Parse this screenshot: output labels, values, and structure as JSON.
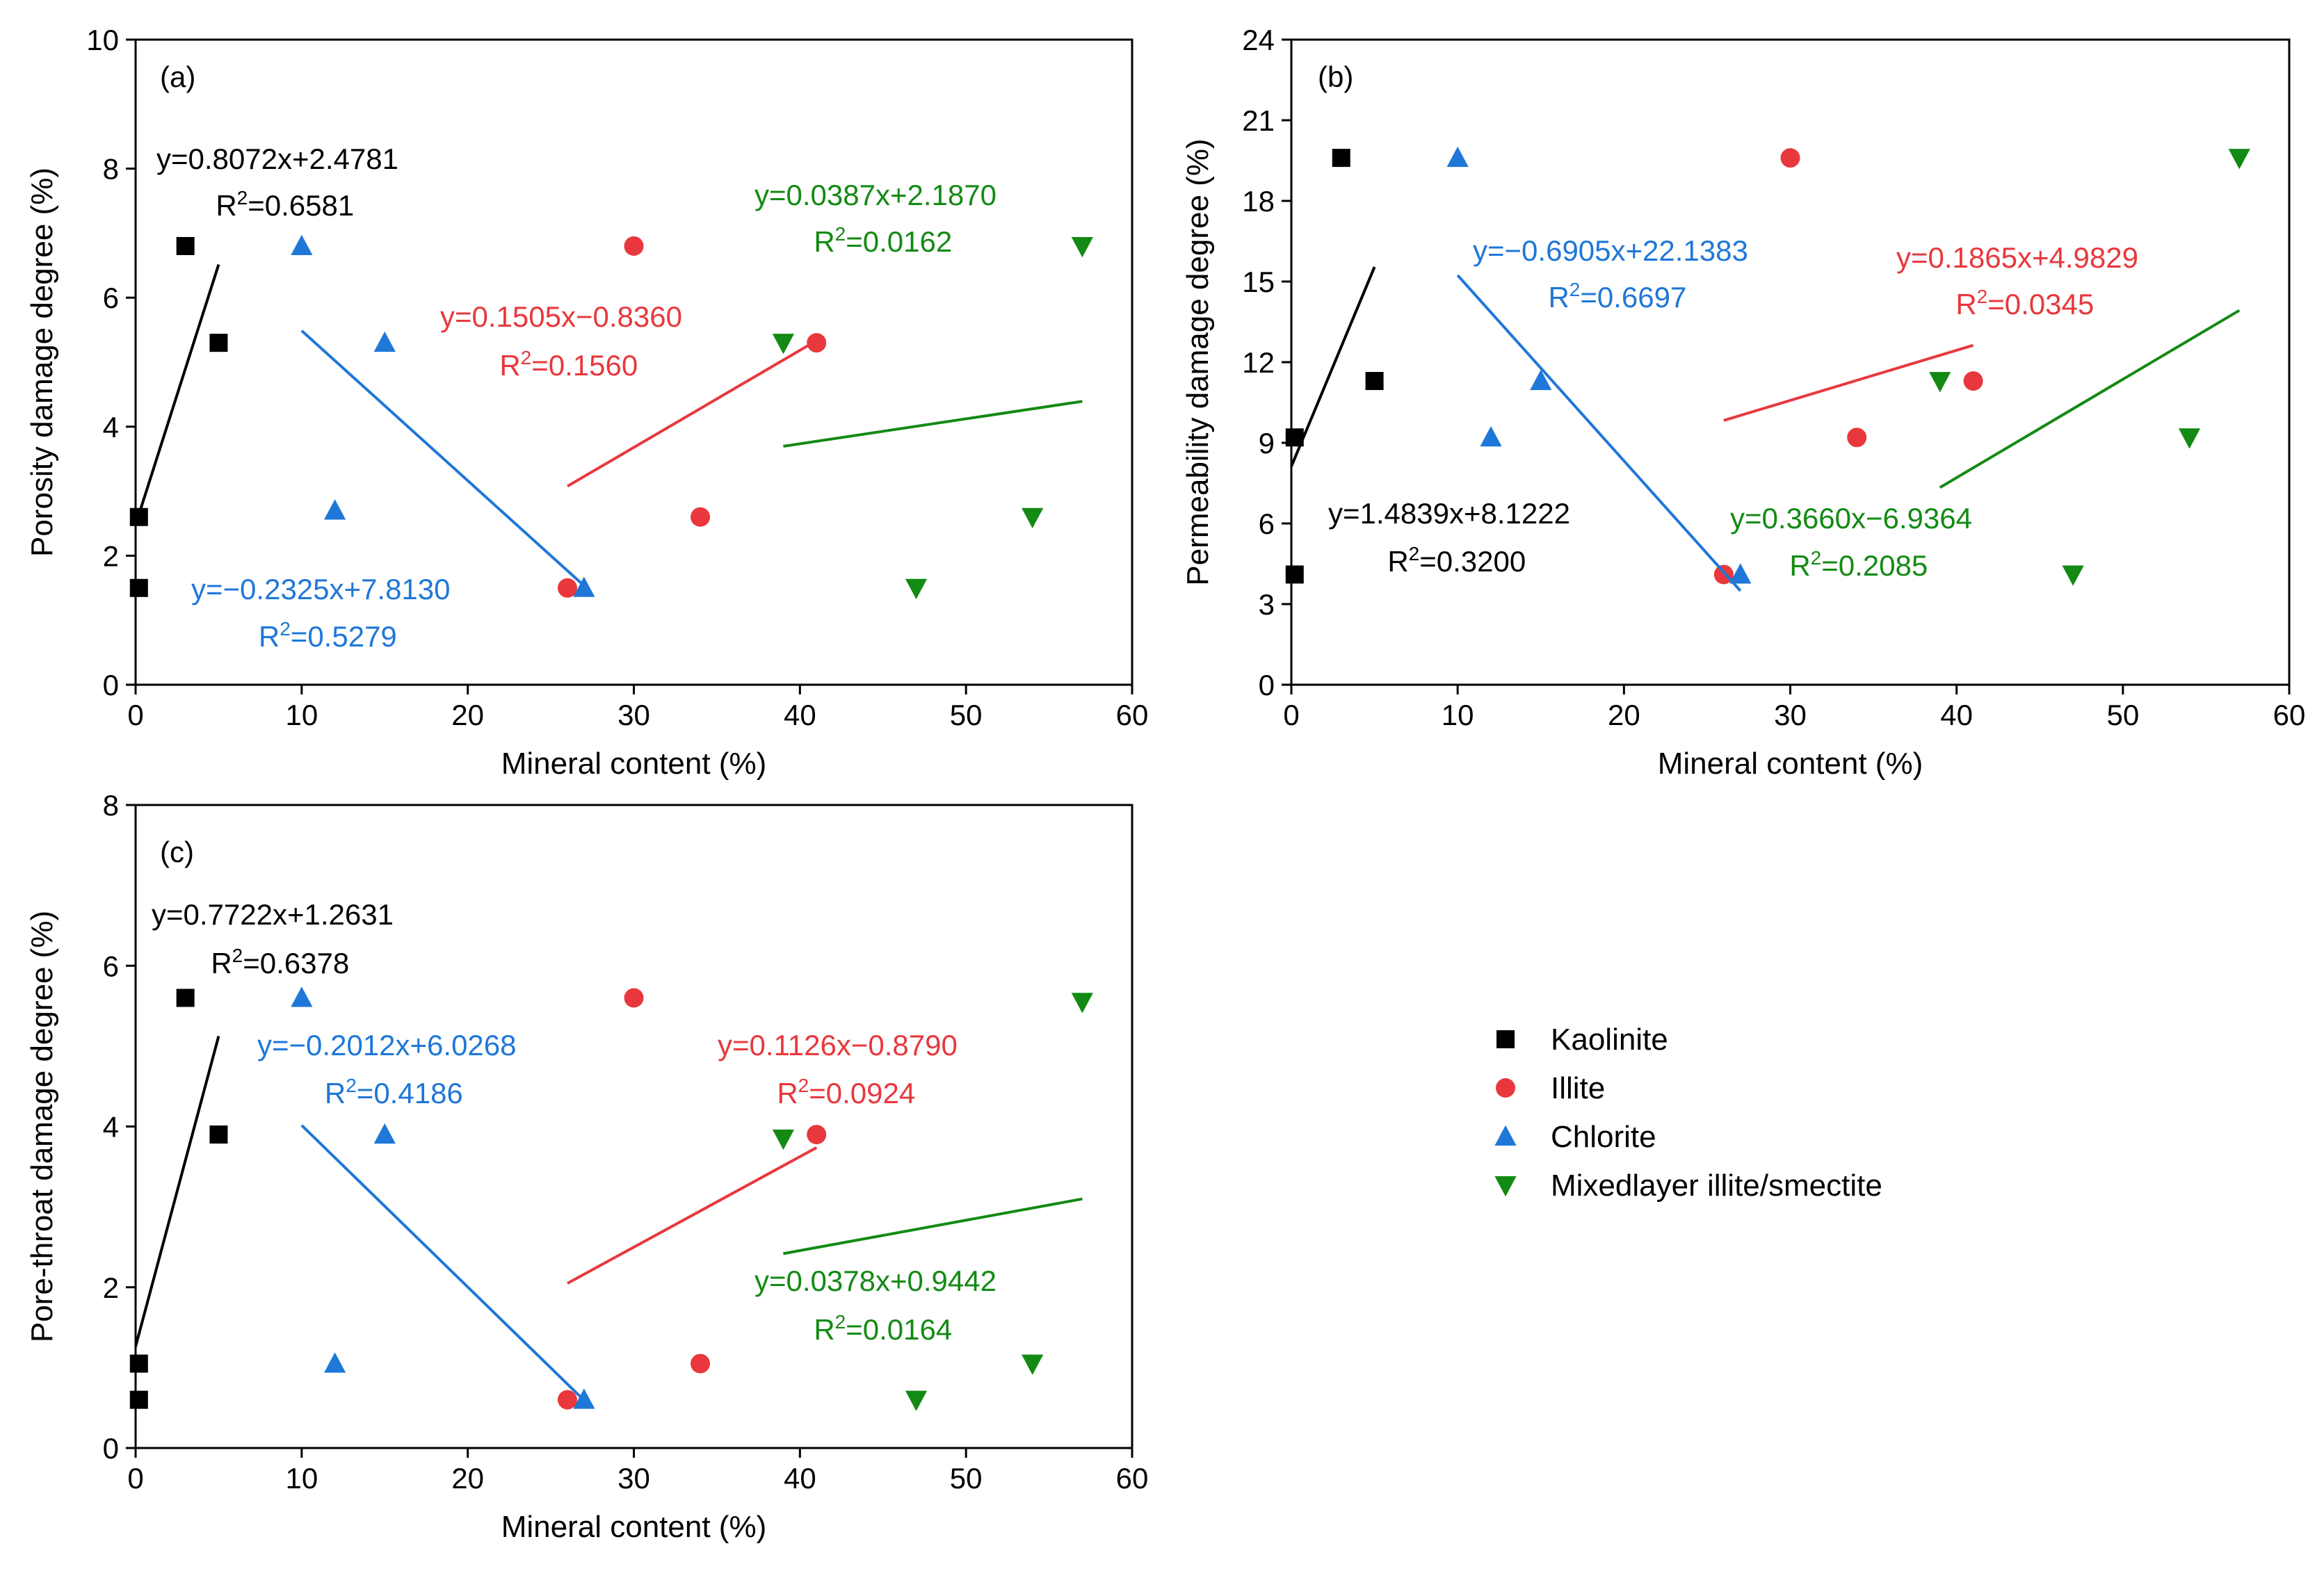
{
  "chart_data": [
    {
      "type": "scatter",
      "panel_label": "(a)",
      "xlabel": "Mineral content (%)",
      "ylabel": "Porosity damage degree (%)",
      "xlim": [
        0,
        60
      ],
      "ylim": [
        0,
        10
      ],
      "x_ticks": [
        0,
        10,
        20,
        30,
        40,
        50,
        60
      ],
      "y_ticks": [
        0,
        2,
        4,
        6,
        8,
        10
      ],
      "series": [
        {
          "name": "Kaolinite",
          "marker": "square",
          "color": "#000000",
          "points": [
            [
              0.2,
              1.5
            ],
            [
              0.2,
              2.6
            ],
            [
              3,
              6.8
            ],
            [
              5,
              5.3
            ]
          ],
          "fit": {
            "slope": 0.8072,
            "intercept": 2.4781,
            "x_range": [
              0,
              5
            ]
          },
          "equation": "y=0.8072x+2.4781",
          "r2": "=0.6581"
        },
        {
          "name": "Illite",
          "marker": "circle",
          "color": "#e8383d",
          "points": [
            [
              26,
              1.5
            ],
            [
              30,
              6.8
            ],
            [
              34,
              2.6
            ],
            [
              41,
              5.3
            ]
          ],
          "fit": {
            "slope": 0.1505,
            "intercept": -0.836,
            "x_range": [
              26,
              41
            ]
          },
          "equation": "y=0.1505x−0.8360",
          "r2": "=0.1560"
        },
        {
          "name": "Chlorite",
          "marker": "triangle-up",
          "color": "#1f77d8",
          "points": [
            [
              10,
              6.8
            ],
            [
              12,
              2.7
            ],
            [
              15,
              5.3
            ],
            [
              27,
              1.5
            ]
          ],
          "fit": {
            "slope": -0.2325,
            "intercept": 7.813,
            "x_range": [
              10,
              27
            ]
          },
          "equation": "y=−0.2325x+7.8130",
          "r2": "=0.5279"
        },
        {
          "name": "Mixedlayer illite/smectite",
          "marker": "triangle-down",
          "color": "#138a13",
          "points": [
            [
              39,
              5.3
            ],
            [
              47,
              1.5
            ],
            [
              54,
              2.6
            ],
            [
              57,
              6.8
            ]
          ],
          "fit": {
            "slope": 0.0387,
            "intercept": 2.187,
            "x_range": [
              39,
              57
            ]
          },
          "equation": "y=0.0387x+2.1870",
          "r2": "=0.0162"
        }
      ]
    },
    {
      "type": "scatter",
      "panel_label": "(b)",
      "xlabel": "Mineral content (%)",
      "ylabel": "Permeability damage degree (%)",
      "xlim": [
        0,
        60
      ],
      "ylim": [
        0,
        24
      ],
      "x_ticks": [
        0,
        10,
        20,
        30,
        40,
        50,
        60
      ],
      "y_ticks": [
        0,
        3,
        6,
        9,
        12,
        15,
        18,
        21,
        24
      ],
      "series": [
        {
          "name": "Kaolinite",
          "marker": "square",
          "color": "#000000",
          "points": [
            [
              0.2,
              4.1
            ],
            [
              0.2,
              9.2
            ],
            [
              3,
              19.6
            ],
            [
              5,
              11.3
            ]
          ],
          "fit": {
            "slope": 1.4839,
            "intercept": 8.1222,
            "x_range": [
              0,
              5
            ]
          },
          "equation": "y=1.4839x+8.1222",
          "r2": "=0.3200"
        },
        {
          "name": "Illite",
          "marker": "circle",
          "color": "#e8383d",
          "points": [
            [
              26,
              4.1
            ],
            [
              30,
              19.6
            ],
            [
              34,
              9.2
            ],
            [
              41,
              11.3
            ]
          ],
          "fit": {
            "slope": 0.1865,
            "intercept": 4.9829,
            "x_range": [
              26,
              41
            ]
          },
          "equation": "y=0.1865x+4.9829",
          "r2": "=0.0345"
        },
        {
          "name": "Chlorite",
          "marker": "triangle-up",
          "color": "#1f77d8",
          "points": [
            [
              10,
              19.6
            ],
            [
              12,
              9.2
            ],
            [
              15,
              11.3
            ],
            [
              27,
              4.1
            ]
          ],
          "fit": {
            "slope": -0.6905,
            "intercept": 22.1383,
            "x_range": [
              10,
              27
            ]
          },
          "equation": "y=−0.6905x+22.1383",
          "r2": "=0.6697"
        },
        {
          "name": "Mixedlayer illite/smectite",
          "marker": "triangle-down",
          "color": "#138a13",
          "points": [
            [
              39,
              11.3
            ],
            [
              47,
              4.1
            ],
            [
              54,
              9.2
            ],
            [
              57,
              19.6
            ]
          ],
          "fit": {
            "slope": 0.366,
            "intercept": -6.9364,
            "x_range": [
              39,
              57
            ]
          },
          "equation": "y=0.3660x−6.9364",
          "r2": "=0.2085"
        }
      ]
    },
    {
      "type": "scatter",
      "panel_label": "(c)",
      "xlabel": "Mineral content (%)",
      "ylabel": "Pore-throat damage degree (%)",
      "xlim": [
        0,
        60
      ],
      "ylim": [
        0,
        8
      ],
      "x_ticks": [
        0,
        10,
        20,
        30,
        40,
        50,
        60
      ],
      "y_ticks": [
        0,
        2,
        4,
        6,
        8
      ],
      "series": [
        {
          "name": "Kaolinite",
          "marker": "square",
          "color": "#000000",
          "points": [
            [
              0.2,
              0.6
            ],
            [
              0.2,
              1.05
            ],
            [
              3,
              5.6
            ],
            [
              5,
              3.9
            ]
          ],
          "fit": {
            "slope": 0.7722,
            "intercept": 1.2631,
            "x_range": [
              0,
              5
            ]
          },
          "equation": "y=0.7722x+1.2631",
          "r2": "=0.6378"
        },
        {
          "name": "Illite",
          "marker": "circle",
          "color": "#e8383d",
          "points": [
            [
              26,
              0.6
            ],
            [
              30,
              5.6
            ],
            [
              34,
              1.05
            ],
            [
              41,
              3.9
            ]
          ],
          "fit": {
            "slope": 0.1126,
            "intercept": -0.879,
            "x_range": [
              26,
              41
            ]
          },
          "equation": "y=0.1126x−0.8790",
          "r2": "=0.0924"
        },
        {
          "name": "Chlorite",
          "marker": "triangle-up",
          "color": "#1f77d8",
          "points": [
            [
              10,
              5.6
            ],
            [
              12,
              1.05
            ],
            [
              15,
              3.9
            ],
            [
              27,
              0.6
            ]
          ],
          "fit": {
            "slope": -0.2012,
            "intercept": 6.0268,
            "x_range": [
              10,
              27
            ]
          },
          "equation": "y=−0.2012x+6.0268",
          "r2": "=0.4186"
        },
        {
          "name": "Mixedlayer illite/smectite",
          "marker": "triangle-down",
          "color": "#138a13",
          "points": [
            [
              39,
              3.85
            ],
            [
              47,
              0.6
            ],
            [
              54,
              1.05
            ],
            [
              57,
              5.55
            ]
          ],
          "fit": {
            "slope": 0.0378,
            "intercept": 0.9442,
            "x_range": [
              39,
              57
            ]
          },
          "equation": "y=0.0378x+0.9442",
          "r2": "=0.0164"
        }
      ]
    }
  ],
  "legend": {
    "r2_prefix": "R",
    "r2_superscript": "2",
    "items": [
      {
        "label": "Kaolinite",
        "marker": "square",
        "color": "#000000"
      },
      {
        "label": "Illite",
        "marker": "circle",
        "color": "#e8383d"
      },
      {
        "label": "Chlorite",
        "marker": "triangle-up",
        "color": "#1f77d8"
      },
      {
        "label": "Mixedlayer illite/smectite",
        "marker": "triangle-down",
        "color": "#138a13"
      }
    ]
  }
}
